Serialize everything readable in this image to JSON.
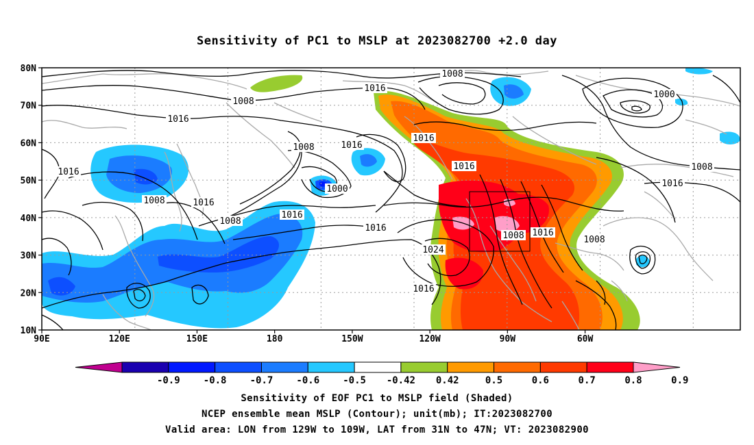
{
  "title": "Sensitivity of PC1 to MSLP at 2023082700 +2.0 day",
  "lat_labels": [
    "80N",
    "70N",
    "60N",
    "50N",
    "40N",
    "30N",
    "20N",
    "10N"
  ],
  "lon_labels": [
    "90E",
    "120E",
    "150E",
    "180",
    "150W",
    "120W",
    "90W",
    "60W"
  ],
  "colorbar": {
    "labels": [
      "-0.9",
      "-0.8",
      "-0.7",
      "-0.6",
      "-0.5",
      "-0.42",
      "0.42",
      "0.5",
      "0.6",
      "0.7",
      "0.8",
      "0.9"
    ],
    "colors": [
      "#c0008f",
      "#1a00b0",
      "#0018ff",
      "#0d4fff",
      "#1b7cff",
      "#25c8ff",
      "#ffffff",
      "#98cc30",
      "#ff9a00",
      "#ff6a00",
      "#ff3a00",
      "#ff0018",
      "#ff9ec8"
    ]
  },
  "contour_labels": [
    {
      "text": "1008"
    },
    {
      "text": "1008"
    },
    {
      "text": "1016"
    },
    {
      "text": "1016"
    },
    {
      "text": "1016"
    },
    {
      "text": "1008"
    },
    {
      "text": "1016"
    },
    {
      "text": "1000"
    },
    {
      "text": "1016"
    },
    {
      "text": "1008"
    },
    {
      "text": "1008"
    },
    {
      "text": "1016"
    },
    {
      "text": "1016"
    },
    {
      "text": "1016"
    },
    {
      "text": "1016"
    },
    {
      "text": "1024"
    },
    {
      "text": "1008"
    },
    {
      "text": "1016"
    },
    {
      "text": "1008"
    },
    {
      "text": "1016"
    },
    {
      "text": "1000"
    },
    {
      "text": "1008"
    },
    {
      "text": "1016"
    }
  ],
  "captions": [
    "Sensitivity of EOF PC1 to MSLP field (Shaded)",
    "NCEP ensemble mean MSLP (Contour); unit(mb); IT:2023082700",
    "Valid area: LON from 129W to 109W, LAT from 31N to 47N; VT: 2023082900"
  ]
}
